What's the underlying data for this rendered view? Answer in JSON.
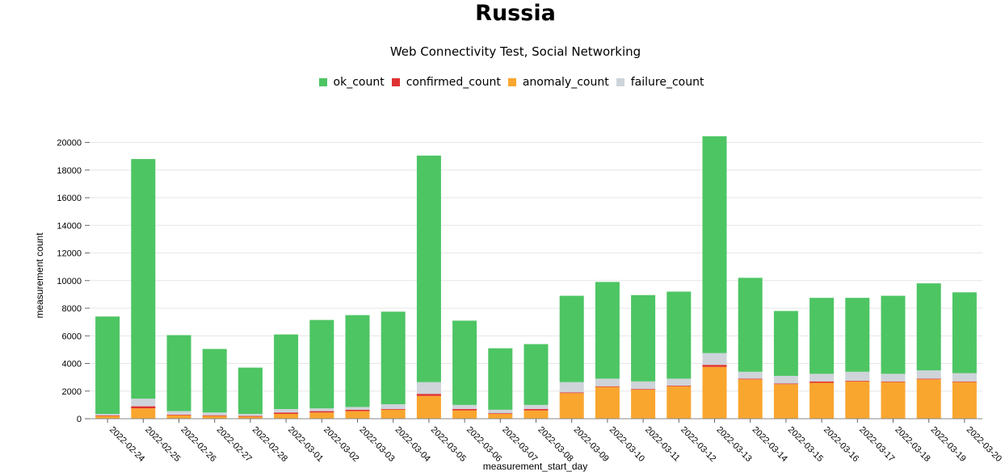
{
  "title": "Russia",
  "subtitle": "Web Connectivity Test, Social Networking",
  "colors": {
    "ok_count": "#4dc563",
    "confirmed_count": "#e03131",
    "anomaly_count": "#f9a62f",
    "failure_count": "#ced4da",
    "grid": "#e6e6e6"
  },
  "chart_data": {
    "type": "bar",
    "stacked": true,
    "xlabel": "measurement_start_day",
    "ylabel": "measurement count",
    "ylim": [
      0,
      20500
    ],
    "yticks": [
      0,
      2000,
      4000,
      6000,
      8000,
      10000,
      12000,
      14000,
      16000,
      18000,
      20000
    ],
    "grid": true,
    "legend_position": "top-center",
    "categories": [
      "2022-02-24",
      "2022-02-25",
      "2022-02-26",
      "2022-02-27",
      "2022-02-28",
      "2022-03-01",
      "2022-03-02",
      "2022-03-03",
      "2022-03-04",
      "2022-03-05",
      "2022-03-06",
      "2022-03-07",
      "2022-03-08",
      "2022-03-09",
      "2022-03-10",
      "2022-03-11",
      "2022-03-12",
      "2022-03-13",
      "2022-03-14",
      "2022-03-15",
      "2022-03-16",
      "2022-03-17",
      "2022-03-18",
      "2022-03-19",
      "2022-03-20"
    ],
    "series": [
      {
        "name": "anomaly_count",
        "values": [
          200,
          750,
          250,
          200,
          150,
          350,
          450,
          550,
          650,
          1650,
          600,
          350,
          600,
          1850,
          2300,
          2100,
          2350,
          3750,
          2850,
          2500,
          2600,
          2700,
          2650,
          2850,
          2650
        ]
      },
      {
        "name": "confirmed_count",
        "values": [
          50,
          150,
          50,
          50,
          50,
          100,
          100,
          100,
          50,
          150,
          100,
          50,
          100,
          50,
          50,
          50,
          50,
          150,
          50,
          50,
          100,
          50,
          50,
          50,
          50
        ]
      },
      {
        "name": "failure_count",
        "values": [
          100,
          550,
          250,
          200,
          150,
          250,
          200,
          200,
          350,
          850,
          300,
          250,
          300,
          750,
          550,
          550,
          500,
          850,
          500,
          550,
          550,
          650,
          550,
          600,
          600
        ]
      },
      {
        "name": "ok_count",
        "values": [
          7050,
          17350,
          5500,
          4600,
          3350,
          5400,
          6400,
          6650,
          6700,
          16400,
          6100,
          4450,
          4400,
          6250,
          7000,
          6250,
          6300,
          15700,
          6800,
          4700,
          5500,
          5350,
          5650,
          6300,
          5850
        ]
      }
    ]
  }
}
